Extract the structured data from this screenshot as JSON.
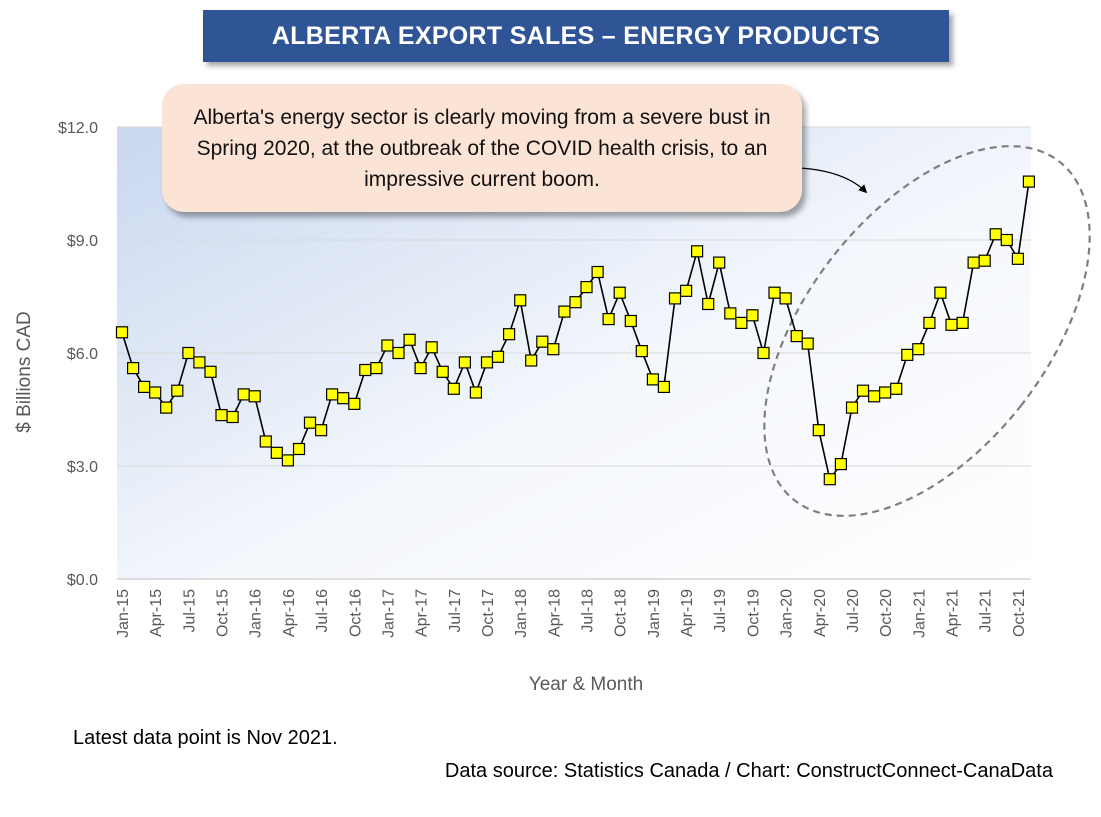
{
  "title": "ALBERTA EXPORT SALES – ENERGY PRODUCTS",
  "callout": "Alberta's energy sector is clearly moving from a severe bust in Spring 2020, at the outbreak of the COVID health crisis, to an impressive current boom.",
  "footer": {
    "note": "Latest data point is Nov 2021.",
    "source": "Data source: Statistics Canada / Chart: ConstructConnect-CanaData"
  },
  "colors": {
    "banner": "#2f5597",
    "marker_fill": "#ffff00",
    "line": "#000000",
    "callout_bg": "#fbe3d6",
    "plot_gradient_top": "#c9d7ef"
  },
  "chart_data": {
    "type": "line",
    "xlabel": "Year & Month",
    "ylabel": "$ Billions CAD",
    "ylim": [
      0,
      12
    ],
    "yticks": [
      0,
      3,
      6,
      9,
      12
    ],
    "ytick_labels": [
      "$0.0",
      "$3.0",
      "$6.0",
      "$9.0",
      "$12.0"
    ],
    "grid": true,
    "x": [
      "Jan-15",
      "Feb-15",
      "Mar-15",
      "Apr-15",
      "May-15",
      "Jun-15",
      "Jul-15",
      "Aug-15",
      "Sep-15",
      "Oct-15",
      "Nov-15",
      "Dec-15",
      "Jan-16",
      "Feb-16",
      "Mar-16",
      "Apr-16",
      "May-16",
      "Jun-16",
      "Jul-16",
      "Aug-16",
      "Sep-16",
      "Oct-16",
      "Nov-16",
      "Dec-16",
      "Jan-17",
      "Feb-17",
      "Mar-17",
      "Apr-17",
      "May-17",
      "Jun-17",
      "Jul-17",
      "Aug-17",
      "Sep-17",
      "Oct-17",
      "Nov-17",
      "Dec-17",
      "Jan-18",
      "Feb-18",
      "Mar-18",
      "Apr-18",
      "May-18",
      "Jun-18",
      "Jul-18",
      "Aug-18",
      "Sep-18",
      "Oct-18",
      "Nov-18",
      "Dec-18",
      "Jan-19",
      "Feb-19",
      "Mar-19",
      "Apr-19",
      "May-19",
      "Jun-19",
      "Jul-19",
      "Aug-19",
      "Sep-19",
      "Oct-19",
      "Nov-19",
      "Dec-19",
      "Jan-20",
      "Feb-20",
      "Mar-20",
      "Apr-20",
      "May-20",
      "Jun-20",
      "Jul-20",
      "Aug-20",
      "Sep-20",
      "Oct-20",
      "Nov-20",
      "Dec-20",
      "Jan-21",
      "Feb-21",
      "Mar-21",
      "Apr-21",
      "May-21",
      "Jun-21",
      "Jul-21",
      "Aug-21",
      "Sep-21",
      "Oct-21",
      "Nov-21"
    ],
    "xtick_labels": [
      "Jan-15",
      "Apr-15",
      "Jul-15",
      "Oct-15",
      "Jan-16",
      "Apr-16",
      "Jul-16",
      "Oct-16",
      "Jan-17",
      "Apr-17",
      "Jul-17",
      "Oct-17",
      "Jan-18",
      "Apr-18",
      "Jul-18",
      "Oct-18",
      "Jan-19",
      "Apr-19",
      "Jul-19",
      "Oct-19",
      "Jan-20",
      "Apr-20",
      "Jul-20",
      "Oct-20",
      "Jan-21",
      "Apr-21",
      "Jul-21",
      "Oct-21"
    ],
    "values": [
      6.55,
      5.6,
      5.1,
      4.95,
      4.55,
      5.0,
      6.0,
      5.75,
      5.5,
      4.35,
      4.3,
      4.9,
      4.85,
      3.65,
      3.35,
      3.15,
      3.45,
      4.15,
      3.95,
      4.9,
      4.8,
      4.65,
      5.55,
      5.6,
      6.2,
      6.0,
      6.35,
      5.6,
      6.15,
      5.5,
      5.05,
      5.75,
      4.95,
      5.75,
      5.9,
      6.5,
      7.4,
      5.8,
      6.3,
      6.1,
      7.1,
      7.35,
      7.75,
      8.15,
      6.9,
      7.6,
      6.85,
      6.05,
      5.3,
      5.1,
      7.45,
      7.65,
      8.7,
      7.3,
      8.4,
      7.05,
      6.8,
      7.0,
      6.0,
      7.6,
      7.45,
      6.45,
      6.25,
      3.95,
      2.65,
      3.05,
      4.55,
      5.0,
      4.85,
      4.95,
      5.05,
      5.95,
      6.1,
      6.8,
      7.6,
      6.75,
      6.8,
      8.4,
      8.45,
      9.15,
      9.0,
      8.5,
      10.55
    ]
  }
}
